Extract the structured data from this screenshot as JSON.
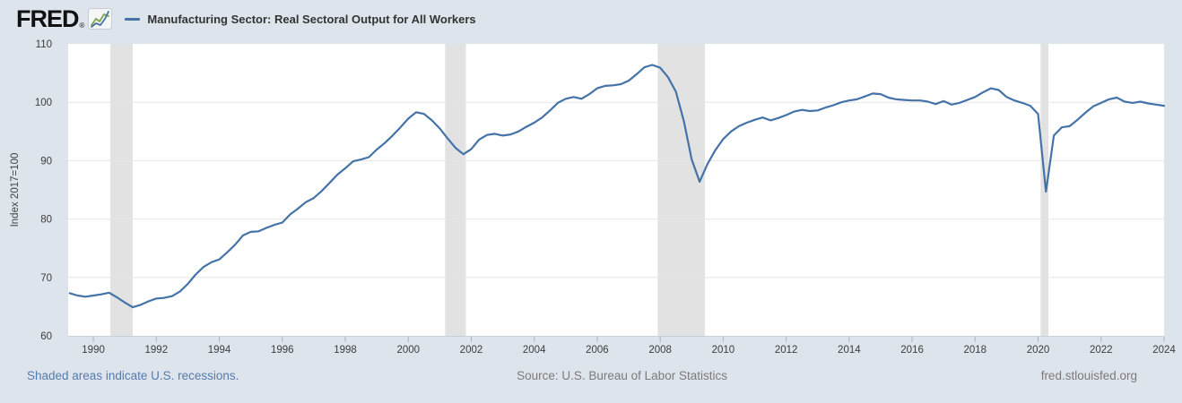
{
  "header": {
    "brand": "FRED",
    "registered": "®",
    "legend_label": "Manufacturing Sector: Real Sectoral Output for All Workers"
  },
  "footer": {
    "recession_note": "Shaded areas indicate U.S. recessions.",
    "source": "Source: U.S. Bureau of Labor Statistics",
    "site": "fred.stlouisfed.org"
  },
  "colors": {
    "background": "#dde4ec",
    "plot_bg": "#ffffff",
    "line": "#4572a7",
    "recession": "#e2e2e2",
    "grid": "#e6e6e6",
    "axis_line": "#c8d1da",
    "axis_tick": "#a8b4c0",
    "tick_text": "#3c3c3c",
    "ylabel_text": "#444444",
    "logo_text": "#111111",
    "footer_link": "#567bad",
    "footer_text": "#7a7a7a",
    "logo_icon_blue": "#4572a7",
    "logo_icon_green": "#7ba64f"
  },
  "chart_data": {
    "type": "line",
    "title": "Manufacturing Sector: Real Sectoral Output for All Workers",
    "xlabel": "",
    "ylabel": "Index 2017=100",
    "ylim": [
      60,
      110
    ],
    "y_ticks": [
      60,
      70,
      80,
      90,
      100,
      110
    ],
    "x_ticks": [
      1990,
      1992,
      1994,
      1996,
      1998,
      2000,
      2002,
      2004,
      2006,
      2008,
      2010,
      2012,
      2014,
      2016,
      2018,
      2020,
      2022,
      2024
    ],
    "x_range_years": [
      1989.2,
      2024.0
    ],
    "grid": "horizontal",
    "legend_position": "top-left",
    "recessions": [
      [
        1990.54,
        1991.25
      ],
      [
        2001.17,
        2001.83
      ],
      [
        2007.92,
        2009.42
      ],
      [
        2020.08,
        2020.33
      ]
    ],
    "series": {
      "name": "Manufacturing Sector: Real Sectoral Output for All Workers",
      "frequency": "quarterly",
      "start_year": 1989.25,
      "step_years": 0.25,
      "values": [
        67.3,
        66.9,
        66.7,
        66.9,
        67.1,
        67.4,
        66.6,
        65.7,
        64.9,
        65.3,
        65.9,
        66.4,
        66.5,
        66.8,
        67.6,
        68.9,
        70.5,
        71.8,
        72.6,
        73.1,
        74.3,
        75.6,
        77.2,
        77.8,
        77.9,
        78.5,
        79.0,
        79.4,
        80.8,
        81.8,
        82.9,
        83.6,
        84.8,
        86.2,
        87.6,
        88.7,
        89.9,
        90.2,
        90.6,
        91.9,
        93.0,
        94.3,
        95.7,
        97.2,
        98.3,
        98.0,
        96.9,
        95.5,
        93.8,
        92.2,
        91.1,
        92.0,
        93.6,
        94.4,
        94.6,
        94.3,
        94.5,
        95.0,
        95.8,
        96.5,
        97.4,
        98.6,
        99.9,
        100.6,
        100.9,
        100.6,
        101.4,
        102.4,
        102.8,
        102.9,
        103.1,
        103.7,
        104.8,
        106.0,
        106.4,
        105.9,
        104.3,
        101.8,
        96.8,
        90.2,
        86.4,
        89.4,
        91.8,
        93.7,
        95.0,
        95.9,
        96.5,
        97.0,
        97.4,
        96.9,
        97.3,
        97.8,
        98.4,
        98.7,
        98.5,
        98.6,
        99.1,
        99.5,
        100.0,
        100.3,
        100.5,
        101.0,
        101.5,
        101.4,
        100.8,
        100.5,
        100.4,
        100.3,
        100.3,
        100.1,
        99.7,
        100.2,
        99.6,
        99.9,
        100.4,
        100.9,
        101.7,
        102.4,
        102.1,
        100.9,
        100.3,
        99.9,
        99.4,
        98.0,
        84.7,
        94.3,
        95.7,
        95.9,
        97.0,
        98.2,
        99.3,
        99.9,
        100.5,
        100.8,
        100.1,
        99.9,
        100.1,
        99.8,
        99.6,
        99.4
      ]
    }
  }
}
